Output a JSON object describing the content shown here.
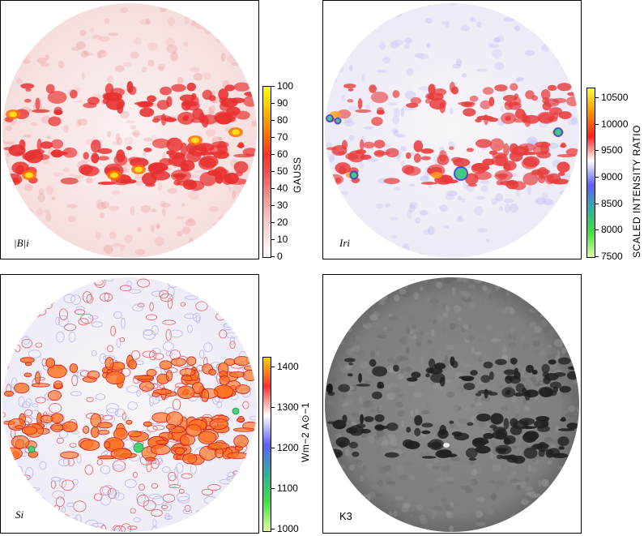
{
  "panels": [
    {
      "id": "b",
      "label": "|B|_i",
      "label_display": "|B|i"
    },
    {
      "id": "ir",
      "label": "Ir_i",
      "label_display": "Iri"
    },
    {
      "id": "s",
      "label": "S_i",
      "label_display": "Si"
    },
    {
      "id": "k3",
      "label": "K_3",
      "label_display": "K3"
    }
  ],
  "colorbars": {
    "gauss": {
      "unit": "GAUSS",
      "ticks": [
        "100",
        "90",
        "80",
        "70",
        "60",
        "50",
        "40",
        "30",
        "20",
        "10",
        "0"
      ],
      "colors": [
        "#ffff00",
        "#ffd000",
        "#ff9a00",
        "#ff6a00",
        "#ff3030",
        "#f05050",
        "#ee8080",
        "#f4aaaa",
        "#f8cccc",
        "#fce6e6",
        "#ffffff"
      ]
    },
    "intensity": {
      "unit": "SCALED INTENSITY RATIO",
      "ticks": [
        "10500",
        "10000",
        "9500",
        "9000",
        "8500",
        "8000",
        "7500"
      ],
      "colors": [
        "#ffff40",
        "#ff9000",
        "#ff2020",
        "#ffffff",
        "#6060ff",
        "#30b0a0",
        "#40e040",
        "#e0ffa0"
      ]
    },
    "flux": {
      "unit": "Wm−2 A⊙−1",
      "ticks": [
        "1400",
        "1300",
        "1200",
        "1100",
        "1000"
      ],
      "colors": [
        "#ffd000",
        "#ff3030",
        "#ffffff",
        "#6060ff",
        "#30b0a0",
        "#40e040",
        "#e0ffa0"
      ]
    }
  }
}
